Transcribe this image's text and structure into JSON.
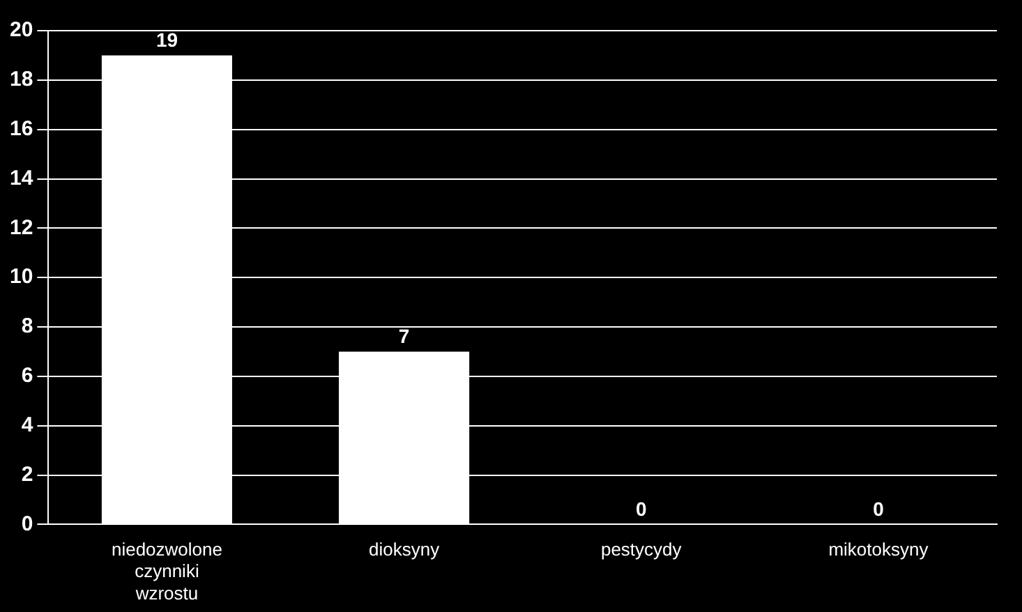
{
  "chart_data": {
    "type": "bar",
    "categories": [
      "niedozwolone czynniki wzrostu",
      "dioksyny",
      "pestycydy",
      "mikotoksyny"
    ],
    "values": [
      19,
      7,
      0,
      0
    ],
    "color": "#ffffff",
    "ylim": [
      0,
      20
    ],
    "yticks": [
      0,
      2,
      4,
      6,
      8,
      10,
      12,
      14,
      16,
      18,
      20
    ],
    "grid": "y",
    "data_labels": true
  }
}
